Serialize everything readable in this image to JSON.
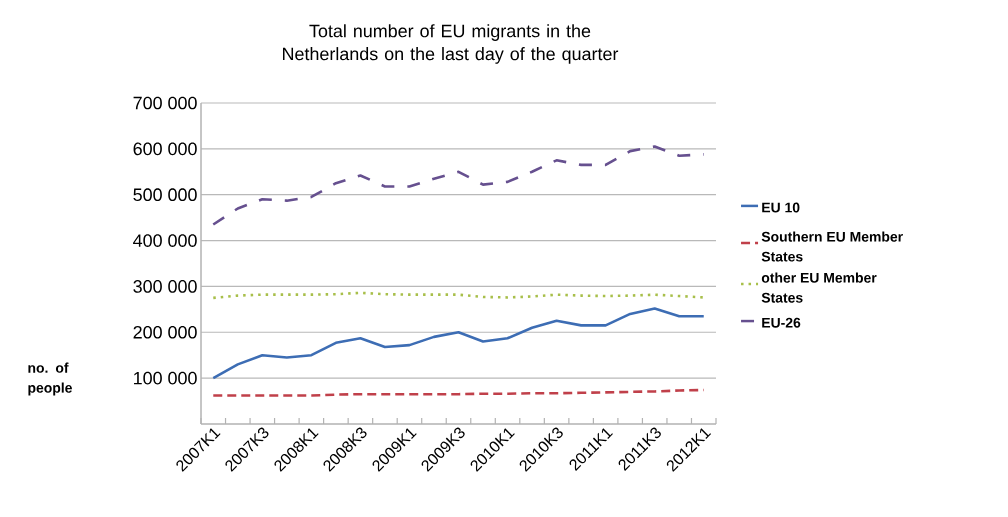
{
  "chart_data": {
    "type": "line",
    "title": "Total number of EU migrants in the Netherlands on the last day of the quarter",
    "ylabel": "no. of people",
    "categories": [
      "2007K1",
      null,
      "2007K3",
      null,
      "2008K1",
      null,
      "2008K3",
      null,
      "2009K1",
      null,
      "2009K3",
      null,
      "2010K1",
      null,
      "2010K3",
      null,
      "2011K1",
      null,
      "2011K3",
      null,
      "2012K1"
    ],
    "series": [
      {
        "name": "EU 10",
        "color": "#3d6db4",
        "line_style": "solid",
        "values": [
          100000,
          130000,
          150000,
          145000,
          150000,
          177000,
          187000,
          168000,
          172000,
          190000,
          200000,
          180000,
          187000,
          210000,
          225000,
          215000,
          215000,
          240000,
          252000,
          235000,
          235000
        ]
      },
      {
        "name": "Southern EU Member States",
        "color": "#c0404a",
        "line_style": "dashed",
        "values": [
          62000,
          62000,
          62000,
          62000,
          62000,
          64000,
          65000,
          65000,
          65000,
          65000,
          65000,
          66000,
          66000,
          67000,
          67000,
          68000,
          69000,
          70000,
          71000,
          73000,
          74000
        ]
      },
      {
        "name": "other EU Member States",
        "color": "#a8bf4a",
        "line_style": "dotted",
        "values": [
          275000,
          280000,
          282000,
          282000,
          282000,
          283000,
          286000,
          283000,
          282000,
          282000,
          282000,
          277000,
          276000,
          278000,
          282000,
          280000,
          279000,
          280000,
          282000,
          279000,
          276000
        ]
      },
      {
        "name": "EU-26",
        "color": "#66508f",
        "line_style": "loosely dashed",
        "values": [
          435000,
          470000,
          490000,
          487000,
          495000,
          525000,
          542000,
          518000,
          518000,
          535000,
          550000,
          522000,
          528000,
          550000,
          575000,
          565000,
          565000,
          595000,
          605000,
          585000,
          588000
        ]
      }
    ],
    "ylim": [
      0,
      700000
    ],
    "yticks": [
      {
        "value": 100000,
        "label": "100 000"
      },
      {
        "value": 200000,
        "label": "200 000"
      },
      {
        "value": 300000,
        "label": "300 000"
      },
      {
        "value": 400000,
        "label": "400 000"
      },
      {
        "value": 500000,
        "label": "500 000"
      },
      {
        "value": 600000,
        "label": "600 000"
      },
      {
        "value": 700000,
        "label": "700 000"
      }
    ],
    "grid": "y",
    "legend": "right",
    "marker": "none"
  }
}
